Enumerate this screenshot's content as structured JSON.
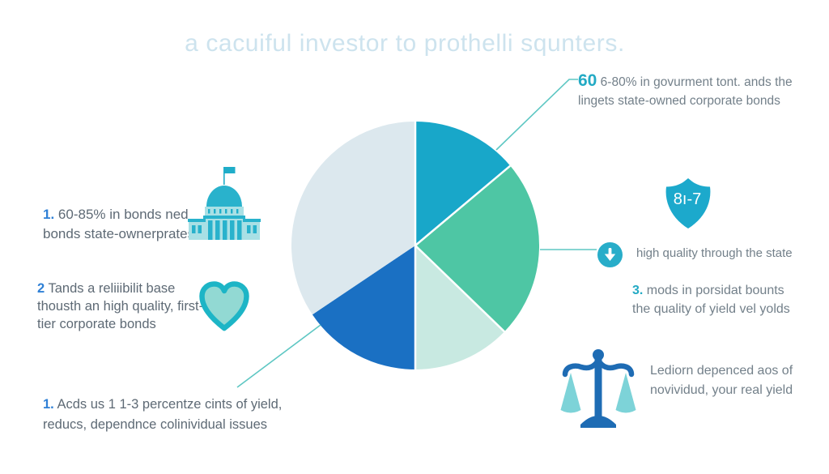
{
  "title": "a cacuiful investor to prothelli squnters.",
  "palette": {
    "title_text": "#cde3ee",
    "body_text": "#73808a",
    "body_text_dark": "#5e6a75",
    "number_blue": "#2f80d6",
    "number_teal": "#23aac4",
    "connector_line": "#5ec7c3",
    "icon_teal": "#1fadc9",
    "icon_light_teal": "#92d9d3",
    "icon_blue": "#1e6cb4"
  },
  "chart_data": {
    "type": "pie",
    "title": "a cacuiful investor to prothelli squnters.",
    "labels": [
      "teal-slice",
      "green-slice",
      "mint-slice",
      "blue-slice",
      "light-gray-slice"
    ],
    "values": [
      13.9,
      23.3,
      12.8,
      15.6,
      34.4
    ],
    "colors": [
      "#18a7c9",
      "#4ec6a4",
      "#c8e9e1",
      "#1a70c3",
      "#dce8ee"
    ],
    "start_angle_deg_from_top_clockwise": 0,
    "separator_angles": [
      0,
      50,
      134,
      180
    ],
    "legend": "none"
  },
  "notes": {
    "top_right": {
      "number": "60",
      "line1": "6-80% in govurment tont. ands the",
      "line2": "lingets state-owned corporate bonds"
    },
    "left_capitol": {
      "number": "1.",
      "line1": "60-85% in bonds ned",
      "line2": "bonds state-ownerprates."
    },
    "left_heart": {
      "number": "2",
      "line1": "Tands a reliiibilit base",
      "line2": "thousth an high quality, first-",
      "line3": "tier corporate bonds"
    },
    "bottom_left": {
      "number": "1.",
      "line1": "Acds us 1 1-3 percentze cints of yield,",
      "line2": "reducs, dependnce colinividual issues"
    },
    "arrow": {
      "text": "high quality through the state"
    },
    "right_shield_note": {
      "number": "3.",
      "line1": "mods in porsidat bounts",
      "line2": "the quality of yield vel yolds"
    },
    "bottom_right": {
      "line1": "Lediorn depenced aos of",
      "line2": "novividud, your real yield"
    }
  },
  "icons": {
    "shield_label": "8ı-7",
    "names": [
      "capitol-building-icon",
      "heart-icon",
      "shield-icon",
      "arrow-down-circle-icon",
      "balance-scale-icon"
    ]
  }
}
